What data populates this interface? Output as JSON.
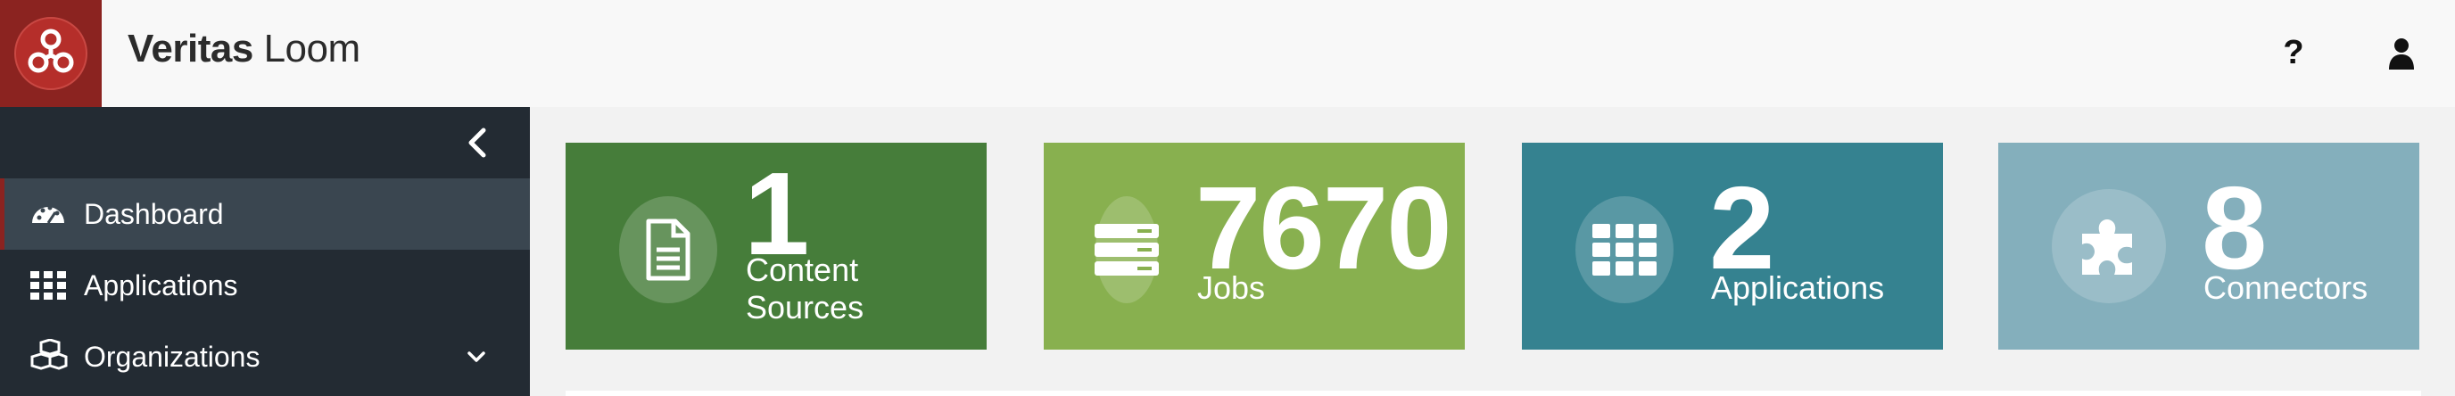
{
  "header": {
    "brand_bold": "Veritas",
    "brand_light": "Loom",
    "help_label": "?",
    "logo_icon": "trefoil-logo-icon",
    "user_icon": "user-icon",
    "brand_color": "#8b2320"
  },
  "sidebar": {
    "collapse_icon": "chevron-left-icon",
    "items": [
      {
        "label": "Dashboard",
        "icon": "dashboard-gauge-icon",
        "active": true
      },
      {
        "label": "Applications",
        "icon": "grid-icon",
        "active": false
      },
      {
        "label": "Organizations",
        "icon": "cubes-icon",
        "active": false,
        "expandable": true
      }
    ]
  },
  "cards": [
    {
      "value": "1",
      "label_line1": "Content",
      "label_line2": "Sources",
      "icon": "document-icon",
      "color": "#467d3a"
    },
    {
      "value": "7670",
      "label_line1": "Jobs",
      "icon": "server-stack-icon",
      "color": "#88b04f"
    },
    {
      "value": "2",
      "label_line1": "Applications",
      "icon": "grid-icon",
      "color": "#358290"
    },
    {
      "value": "8",
      "label_line1": "Connectors",
      "icon": "puzzle-piece-icon",
      "color": "#84afbc"
    }
  ]
}
